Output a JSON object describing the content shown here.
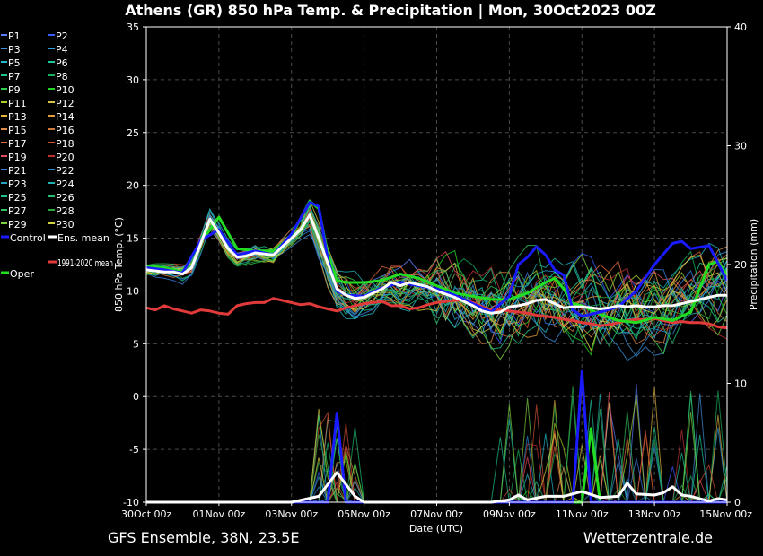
{
  "title": "Athens  (GR)  850 hPa Temp. & Precipitation | Mon, 30Oct2023 00Z",
  "footer_left": "GFS Ensemble, 38N, 23.5E",
  "footer_right": "Wetterzentrale.de",
  "colors": {
    "background": "#000000",
    "grid": "#555555",
    "control": "#1a1aff",
    "ens_mean": "#ffffff",
    "climate_mean": "#e03a3a",
    "oper": "#22dd22"
  },
  "legend": [
    {
      "label": "P1",
      "color": "#5b7cff"
    },
    {
      "label": "P2",
      "color": "#3a5bff"
    },
    {
      "label": "P3",
      "color": "#3f8fd6"
    },
    {
      "label": "P4",
      "color": "#2e9fe0"
    },
    {
      "label": "P5",
      "color": "#22b8c8"
    },
    {
      "label": "P6",
      "color": "#1fc9a0"
    },
    {
      "label": "P7",
      "color": "#1ec58a"
    },
    {
      "label": "P8",
      "color": "#17b05a"
    },
    {
      "label": "P9",
      "color": "#2fcf4a"
    },
    {
      "label": "P10",
      "color": "#22d422"
    },
    {
      "label": "P11",
      "color": "#a8d42a"
    },
    {
      "label": "P12",
      "color": "#d6c43a"
    },
    {
      "label": "P13",
      "color": "#e0b040"
    },
    {
      "label": "P14",
      "color": "#e09a3a"
    },
    {
      "label": "P15",
      "color": "#e08a4a"
    },
    {
      "label": "P16",
      "color": "#d07a3a"
    },
    {
      "label": "P17",
      "color": "#e06a3a"
    },
    {
      "label": "P18",
      "color": "#d05030"
    },
    {
      "label": "P19",
      "color": "#e04a5a"
    },
    {
      "label": "P20",
      "color": "#c03030"
    },
    {
      "label": "P21",
      "color": "#3a7ae0"
    },
    {
      "label": "P22",
      "color": "#2a8ad0"
    },
    {
      "label": "P23",
      "color": "#2aa0c0"
    },
    {
      "label": "P24",
      "color": "#20b0b0"
    },
    {
      "label": "P25",
      "color": "#20c090"
    },
    {
      "label": "P26",
      "color": "#20c070"
    },
    {
      "label": "P27",
      "color": "#30c060"
    },
    {
      "label": "P28",
      "color": "#28a840"
    },
    {
      "label": "P29",
      "color": "#7ad040"
    },
    {
      "label": "P30",
      "color": "#d0d040"
    },
    {
      "label": "Control",
      "color": "#1a1aff"
    },
    {
      "label": "Ens. mean",
      "color": "#ffffff"
    },
    {
      "label": "1991-2020 mean",
      "color": "#e03a3a"
    },
    {
      "label": "Oper",
      "color": "#22dd22"
    }
  ],
  "chart_data": {
    "type": "line",
    "xlabel": "Date (UTC)",
    "ylabel": "850 hPa Temp. (°C)",
    "y2label": "Precipitation (mm)",
    "x_unit": "days since 30Oct 00z",
    "xlim": [
      0,
      16
    ],
    "ylim": [
      -10,
      35
    ],
    "y2lim": [
      0,
      40
    ],
    "grid": true,
    "x_ticks": [
      {
        "x": 0,
        "label": "30Oct 00z"
      },
      {
        "x": 2,
        "label": "01Nov 00z"
      },
      {
        "x": 4,
        "label": "03Nov 00z"
      },
      {
        "x": 6,
        "label": "05Nov 00z"
      },
      {
        "x": 8,
        "label": "07Nov 00z"
      },
      {
        "x": 10,
        "label": "09Nov 00z"
      },
      {
        "x": 12,
        "label": "11Nov 00z"
      },
      {
        "x": 14,
        "label": "13Nov 00z"
      },
      {
        "x": 16,
        "label": "15Nov 00z"
      }
    ],
    "y_ticks": [
      -10,
      -5,
      0,
      5,
      10,
      15,
      20,
      25,
      30,
      35
    ],
    "y2_ticks": [
      0,
      10,
      20,
      30,
      40
    ],
    "temperature_series": [
      {
        "name": "Ens. mean",
        "color": "#ffffff",
        "width": 3,
        "points": [
          [
            0,
            12
          ],
          [
            0.25,
            11.9
          ],
          [
            0.5,
            11.8
          ],
          [
            0.75,
            11.8
          ],
          [
            1,
            11.6
          ],
          [
            1.25,
            12.2
          ],
          [
            1.5,
            14.5
          ],
          [
            1.75,
            16.8
          ],
          [
            2,
            15.5
          ],
          [
            2.25,
            14
          ],
          [
            2.5,
            13.2
          ],
          [
            2.75,
            13.3
          ],
          [
            3,
            13.6
          ],
          [
            3.25,
            13.5
          ],
          [
            3.5,
            13.4
          ],
          [
            3.75,
            14.2
          ],
          [
            4,
            15
          ],
          [
            4.25,
            15.8
          ],
          [
            4.5,
            17.2
          ],
          [
            4.75,
            15
          ],
          [
            5,
            12.6
          ],
          [
            5.25,
            10.2
          ],
          [
            5.5,
            9.6
          ],
          [
            5.75,
            9.3
          ],
          [
            6,
            9.4
          ],
          [
            6.25,
            9.8
          ],
          [
            6.5,
            10.2
          ],
          [
            6.75,
            10.8
          ],
          [
            7,
            10.5
          ],
          [
            7.25,
            10.8
          ],
          [
            7.5,
            10.6
          ],
          [
            7.75,
            10.4
          ],
          [
            8,
            10
          ],
          [
            8.25,
            9.7
          ],
          [
            8.5,
            9.4
          ],
          [
            8.75,
            9
          ],
          [
            9,
            8.6
          ],
          [
            9.25,
            8.1
          ],
          [
            9.5,
            7.9
          ],
          [
            9.75,
            8
          ],
          [
            10,
            8.5
          ],
          [
            10.25,
            8.6
          ],
          [
            10.5,
            8.8
          ],
          [
            10.75,
            9.1
          ],
          [
            11,
            9.2
          ],
          [
            11.25,
            8.8
          ],
          [
            11.5,
            8.4
          ],
          [
            11.75,
            8.5
          ],
          [
            12,
            8.5
          ],
          [
            12.25,
            8.4
          ],
          [
            12.5,
            8.3
          ],
          [
            12.75,
            8.4
          ],
          [
            13,
            8.6
          ],
          [
            13.25,
            8.5
          ],
          [
            13.5,
            8.6
          ],
          [
            13.75,
            8.5
          ],
          [
            14,
            8.5
          ],
          [
            14.25,
            8.6
          ],
          [
            14.5,
            8.6
          ],
          [
            14.75,
            8.8
          ],
          [
            15,
            9
          ],
          [
            15.25,
            9.2
          ],
          [
            15.5,
            9.4
          ],
          [
            15.75,
            9.6
          ],
          [
            16,
            9.6
          ]
        ]
      },
      {
        "name": "Control",
        "color": "#1a1aff",
        "width": 3,
        "points": [
          [
            0,
            12.2
          ],
          [
            0.5,
            12
          ],
          [
            1,
            11.7
          ],
          [
            1.5,
            14.8
          ],
          [
            2,
            15.8
          ],
          [
            2.5,
            13.4
          ],
          [
            3,
            13.8
          ],
          [
            3.5,
            13.4
          ],
          [
            4,
            15.4
          ],
          [
            4.5,
            18.4
          ],
          [
            4.75,
            18
          ],
          [
            5,
            13
          ],
          [
            5.25,
            10
          ],
          [
            5.5,
            9.6
          ],
          [
            6,
            9.5
          ],
          [
            6.5,
            10.3
          ],
          [
            7,
            10.8
          ],
          [
            7.5,
            10.5
          ],
          [
            8,
            10.2
          ],
          [
            8.5,
            9.6
          ],
          [
            9,
            8.8
          ],
          [
            9.5,
            8
          ],
          [
            10,
            9.5
          ],
          [
            10.25,
            12.5
          ],
          [
            10.5,
            13.2
          ],
          [
            10.75,
            14.2
          ],
          [
            11,
            13.4
          ],
          [
            11.25,
            12
          ],
          [
            11.5,
            11.5
          ],
          [
            11.75,
            8.2
          ],
          [
            12,
            7.6
          ],
          [
            12.5,
            8
          ],
          [
            13,
            8.5
          ],
          [
            13.5,
            10
          ],
          [
            14,
            12.5
          ],
          [
            14.5,
            14.5
          ],
          [
            14.75,
            14.7
          ],
          [
            15,
            14
          ],
          [
            15.5,
            14.3
          ],
          [
            16,
            11
          ]
        ]
      },
      {
        "name": "Oper",
        "color": "#22dd22",
        "width": 3,
        "points": [
          [
            0,
            12.4
          ],
          [
            0.5,
            12.2
          ],
          [
            1,
            11.8
          ],
          [
            1.5,
            14.6
          ],
          [
            2,
            17
          ],
          [
            2.5,
            14
          ],
          [
            3,
            13.8
          ],
          [
            3.5,
            13.8
          ],
          [
            4,
            15.2
          ],
          [
            4.5,
            18.5
          ],
          [
            4.75,
            17.8
          ],
          [
            5,
            13.5
          ],
          [
            5.25,
            11
          ],
          [
            5.5,
            10.8
          ],
          [
            6,
            10.8
          ],
          [
            6.5,
            11
          ],
          [
            7,
            11.6
          ],
          [
            7.5,
            11.2
          ],
          [
            8,
            10.5
          ],
          [
            8.5,
            9.8
          ],
          [
            9,
            9.5
          ],
          [
            9.5,
            9.2
          ],
          [
            10,
            9.2
          ],
          [
            10.5,
            9.8
          ],
          [
            11,
            10.8
          ],
          [
            11.25,
            11.2
          ],
          [
            11.5,
            10.2
          ],
          [
            11.75,
            8.8
          ],
          [
            12,
            8.6
          ],
          [
            12.5,
            7.8
          ],
          [
            13,
            7.2
          ],
          [
            13.5,
            7
          ],
          [
            14,
            7.5
          ],
          [
            14.5,
            7.2
          ],
          [
            15,
            8
          ],
          [
            15.5,
            12.5
          ],
          [
            15.75,
            12.8
          ],
          [
            16,
            11.5
          ]
        ]
      },
      {
        "name": "1991-2020 mean",
        "color": "#e03a3a",
        "width": 3,
        "points": [
          [
            0,
            8.4
          ],
          [
            0.25,
            8.2
          ],
          [
            0.5,
            8.6
          ],
          [
            0.75,
            8.3
          ],
          [
            1,
            8.1
          ],
          [
            1.25,
            7.9
          ],
          [
            1.5,
            8.2
          ],
          [
            1.75,
            8.1
          ],
          [
            2,
            7.9
          ],
          [
            2.25,
            7.8
          ],
          [
            2.5,
            8.6
          ],
          [
            2.75,
            8.8
          ],
          [
            3,
            8.9
          ],
          [
            3.25,
            8.9
          ],
          [
            3.5,
            9.3
          ],
          [
            3.75,
            9.1
          ],
          [
            4,
            8.9
          ],
          [
            4.25,
            8.7
          ],
          [
            4.5,
            8.8
          ],
          [
            4.75,
            8.5
          ],
          [
            5,
            8.3
          ],
          [
            5.25,
            8.1
          ],
          [
            5.5,
            8.4
          ],
          [
            5.75,
            8.6
          ],
          [
            6,
            8.8
          ],
          [
            6.25,
            8.9
          ],
          [
            6.5,
            9
          ],
          [
            6.75,
            8.6
          ],
          [
            7,
            8.6
          ],
          [
            7.25,
            8.3
          ],
          [
            7.5,
            8.4
          ],
          [
            7.75,
            8.7
          ],
          [
            8,
            8.9
          ],
          [
            8.25,
            9
          ],
          [
            8.5,
            9.1
          ],
          [
            8.75,
            9.2
          ],
          [
            9,
            8.9
          ],
          [
            9.25,
            8.5
          ],
          [
            9.5,
            8.2
          ],
          [
            9.75,
            8.2
          ],
          [
            10,
            8.1
          ],
          [
            10.25,
            8
          ],
          [
            10.5,
            7.9
          ],
          [
            10.75,
            7.7
          ],
          [
            11,
            7.6
          ],
          [
            11.25,
            7.5
          ],
          [
            11.5,
            7.3
          ],
          [
            11.75,
            7.2
          ],
          [
            12,
            7
          ],
          [
            12.25,
            6.9
          ],
          [
            12.5,
            6.7
          ],
          [
            12.75,
            6.8
          ],
          [
            13,
            7
          ],
          [
            13.25,
            7.2
          ],
          [
            13.5,
            7.3
          ],
          [
            13.75,
            7.3
          ],
          [
            14,
            7.4
          ],
          [
            14.25,
            7.2
          ],
          [
            14.5,
            7
          ],
          [
            14.75,
            7.1
          ],
          [
            15,
            7
          ],
          [
            15.25,
            7
          ],
          [
            15.5,
            6.9
          ],
          [
            15.75,
            6.6
          ],
          [
            16,
            6.5
          ]
        ]
      }
    ],
    "precipitation_series": [
      {
        "name": "Ens. mean",
        "color": "#ffffff",
        "width": 3,
        "points": [
          [
            0,
            0
          ],
          [
            4,
            0
          ],
          [
            4.75,
            0.5
          ],
          [
            5.25,
            2.5
          ],
          [
            5.75,
            0.5
          ],
          [
            6,
            0
          ],
          [
            9.5,
            0
          ],
          [
            10,
            0.2
          ],
          [
            10.25,
            0.6
          ],
          [
            10.5,
            0.2
          ],
          [
            11,
            0.5
          ],
          [
            11.5,
            0.5
          ],
          [
            12,
            0.9
          ],
          [
            12.5,
            0.4
          ],
          [
            13,
            0.5
          ],
          [
            13.25,
            1.6
          ],
          [
            13.5,
            0.7
          ],
          [
            14,
            0.6
          ],
          [
            14.25,
            0.8
          ],
          [
            14.5,
            1.3
          ],
          [
            14.75,
            0.6
          ],
          [
            15,
            0.5
          ],
          [
            15.5,
            0.1
          ],
          [
            15.75,
            0.3
          ],
          [
            16,
            0.2
          ]
        ]
      },
      {
        "name": "Control",
        "color": "#1a1aff",
        "width": 3,
        "points": [
          [
            0,
            0
          ],
          [
            5,
            0
          ],
          [
            5.25,
            7.5
          ],
          [
            5.5,
            0
          ],
          [
            11.75,
            0
          ],
          [
            12,
            11
          ],
          [
            12.25,
            0
          ],
          [
            16,
            0
          ]
        ]
      },
      {
        "name": "Oper",
        "color": "#22dd22",
        "width": 3,
        "points": [
          [
            0,
            0
          ],
          [
            5,
            0
          ],
          [
            5.25,
            7.3
          ],
          [
            5.5,
            0
          ],
          [
            12,
            0
          ],
          [
            12.25,
            6.2
          ],
          [
            12.5,
            0
          ],
          [
            16,
            0
          ]
        ]
      }
    ]
  }
}
